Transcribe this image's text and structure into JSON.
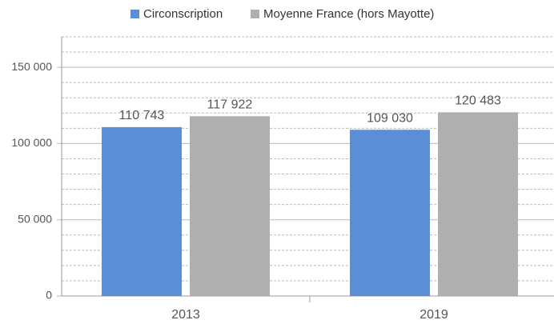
{
  "chart_data": {
    "type": "bar",
    "categories": [
      "2013",
      "2019"
    ],
    "series": [
      {
        "name": "Circonscription",
        "color": "#5b8ed6",
        "values": [
          110743,
          109030
        ],
        "value_labels": [
          "110 743",
          "109 030"
        ]
      },
      {
        "name": "Moyenne France (hors Mayotte)",
        "color": "#b0aeae",
        "values": [
          117922,
          120483
        ],
        "value_labels": [
          "117 922",
          "120 483"
        ]
      }
    ],
    "ylim": [
      0,
      170000
    ],
    "yticks": [
      {
        "value": 0,
        "label": "0"
      },
      {
        "value": 50000,
        "label": "50 000"
      },
      {
        "value": 100000,
        "label": "100 000"
      },
      {
        "value": 150000,
        "label": "150 000"
      }
    ],
    "minor_yticks": [
      10000,
      20000,
      30000,
      40000,
      60000,
      70000,
      80000,
      90000,
      110000,
      120000,
      130000,
      140000,
      160000,
      170000
    ],
    "grid": true,
    "legend": "top"
  }
}
